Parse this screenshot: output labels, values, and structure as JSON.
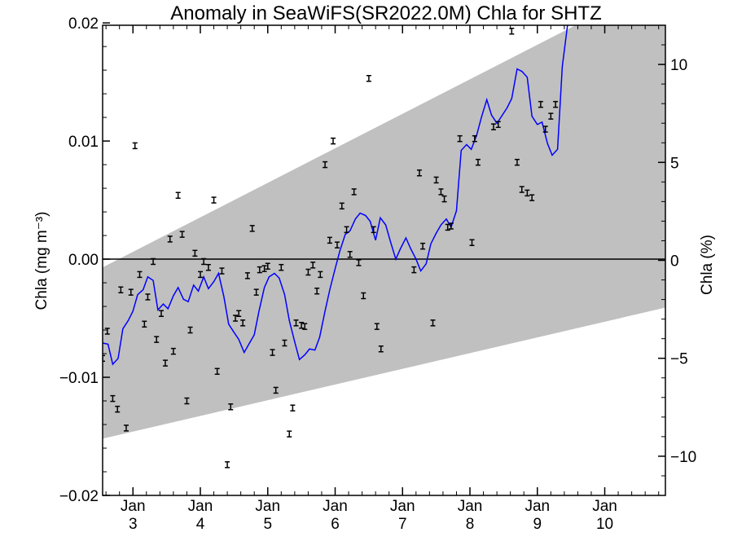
{
  "chart_data": {
    "type": "line",
    "title": "Anomaly in SeaWiFS(SR2022.0M) Chla for SHTZ",
    "ylabel_left": "Chla (mg m⁻³)",
    "ylabel_right": "Chla (%)",
    "x_tick_labels": [
      {
        "top": "Jan",
        "bottom": "3",
        "x": 3
      },
      {
        "top": "Jan",
        "bottom": "4",
        "x": 4
      },
      {
        "top": "Jan",
        "bottom": "5",
        "x": 5
      },
      {
        "top": "Jan",
        "bottom": "6",
        "x": 6
      },
      {
        "top": "Jan",
        "bottom": "7",
        "x": 7
      },
      {
        "top": "Jan",
        "bottom": "8",
        "x": 8
      },
      {
        "top": "Jan",
        "bottom": "9",
        "x": 9
      },
      {
        "top": "Jan",
        "bottom": "10",
        "x": 10
      }
    ],
    "xlim": [
      2.55,
      10.9
    ],
    "ylim_left": [
      -0.02,
      0.0198
    ],
    "ylim_right": [
      -12,
      12
    ],
    "y_ticks_left": [
      {
        "value": 0.02,
        "label": "0.02"
      },
      {
        "value": 0.01,
        "label": "0.01"
      },
      {
        "value": 0.0,
        "label": "0.00"
      },
      {
        "value": -0.01,
        "label": "−0.01"
      },
      {
        "value": -0.02,
        "label": "−0.02"
      }
    ],
    "y_ticks_right": [
      {
        "value": 10,
        "label": "10"
      },
      {
        "value": 5,
        "label": "5"
      },
      {
        "value": 0,
        "label": "0"
      },
      {
        "value": -5,
        "label": "−5"
      },
      {
        "value": -10,
        "label": "−10"
      }
    ],
    "colors": {
      "band": "#c0c0c0",
      "line": "#0000ff",
      "points": "#000000",
      "zero_line": "#000000"
    },
    "band": {
      "upper": [
        [
          2.55,
          -0.0007
        ],
        [
          10.9,
          0.0237
        ]
      ],
      "lower": [
        [
          2.55,
          -0.0152
        ],
        [
          10.9,
          -0.0041
        ]
      ]
    },
    "series": [
      {
        "type": "line",
        "points": [
          [
            2.55,
            -0.0071
          ],
          [
            2.63,
            -0.0072
          ],
          [
            2.7,
            -0.0089
          ],
          [
            2.78,
            -0.0084
          ],
          [
            2.85,
            -0.0059
          ],
          [
            2.93,
            -0.0052
          ],
          [
            3.0,
            -0.0044
          ],
          [
            3.07,
            -0.003
          ],
          [
            3.15,
            -0.0026
          ],
          [
            3.22,
            -0.0015
          ],
          [
            3.3,
            -0.0018
          ],
          [
            3.37,
            -0.0043
          ],
          [
            3.45,
            -0.0038
          ],
          [
            3.52,
            -0.0042
          ],
          [
            3.6,
            -0.0031
          ],
          [
            3.67,
            -0.0024
          ],
          [
            3.75,
            -0.0034
          ],
          [
            3.82,
            -0.0036
          ],
          [
            3.9,
            -0.0022
          ],
          [
            3.97,
            -0.0027
          ],
          [
            4.05,
            -0.0015
          ],
          [
            4.12,
            -0.0025
          ],
          [
            4.2,
            -0.0019
          ],
          [
            4.27,
            -0.0012
          ],
          [
            4.35,
            -0.0032
          ],
          [
            4.42,
            -0.0055
          ],
          [
            4.5,
            -0.0062
          ],
          [
            4.57,
            -0.0068
          ],
          [
            4.65,
            -0.0079
          ],
          [
            4.72,
            -0.0072
          ],
          [
            4.8,
            -0.0064
          ],
          [
            4.87,
            -0.0044
          ],
          [
            4.95,
            -0.0024
          ],
          [
            5.02,
            -0.0015
          ],
          [
            5.1,
            -0.0012
          ],
          [
            5.17,
            -0.0016
          ],
          [
            5.25,
            -0.003
          ],
          [
            5.32,
            -0.0052
          ],
          [
            5.4,
            -0.007
          ],
          [
            5.47,
            -0.0085
          ],
          [
            5.55,
            -0.0081
          ],
          [
            5.62,
            -0.0076
          ],
          [
            5.7,
            -0.0077
          ],
          [
            5.77,
            -0.0066
          ],
          [
            5.85,
            -0.0044
          ],
          [
            5.92,
            -0.0026
          ],
          [
            6.0,
            -0.0008
          ],
          [
            6.07,
            0.0007
          ],
          [
            6.15,
            0.0021
          ],
          [
            6.22,
            0.0024
          ],
          [
            6.3,
            0.0034
          ],
          [
            6.37,
            0.0039
          ],
          [
            6.45,
            0.0037
          ],
          [
            6.52,
            0.0032
          ],
          [
            6.6,
            0.0016
          ],
          [
            6.67,
            0.0035
          ],
          [
            6.75,
            0.0029
          ],
          [
            6.82,
            0.0015
          ],
          [
            6.9,
            0.0
          ],
          [
            6.97,
            0.0009
          ],
          [
            7.05,
            0.0018
          ],
          [
            7.12,
            0.0009
          ],
          [
            7.2,
            0.0
          ],
          [
            7.27,
            -0.001
          ],
          [
            7.35,
            -0.0004
          ],
          [
            7.42,
            0.0013
          ],
          [
            7.5,
            0.0022
          ],
          [
            7.57,
            0.0029
          ],
          [
            7.65,
            0.0034
          ],
          [
            7.72,
            0.0027
          ],
          [
            7.8,
            0.0041
          ],
          [
            7.87,
            0.0092
          ],
          [
            7.95,
            0.0097
          ],
          [
            8.02,
            0.0093
          ],
          [
            8.1,
            0.0105
          ],
          [
            8.17,
            0.012
          ],
          [
            8.25,
            0.0135
          ],
          [
            8.32,
            0.0122
          ],
          [
            8.4,
            0.0115
          ],
          [
            8.47,
            0.0121
          ],
          [
            8.55,
            0.0128
          ],
          [
            8.62,
            0.0136
          ],
          [
            8.7,
            0.0161
          ],
          [
            8.77,
            0.0159
          ],
          [
            8.85,
            0.0154
          ],
          [
            8.92,
            0.0121
          ],
          [
            9.0,
            0.0114
          ],
          [
            9.07,
            0.0116
          ],
          [
            9.15,
            0.0098
          ],
          [
            9.22,
            0.0088
          ],
          [
            9.3,
            0.0093
          ],
          [
            9.37,
            0.0163
          ],
          [
            9.45,
            0.0199
          ]
        ]
      },
      {
        "type": "scatter_errorbar",
        "points": [
          [
            2.55,
            -0.0084
          ],
          [
            2.62,
            -0.0061
          ],
          [
            2.7,
            -0.0118
          ],
          [
            2.77,
            -0.0127
          ],
          [
            2.82,
            -0.0026
          ],
          [
            2.9,
            -0.0143
          ],
          [
            2.97,
            -0.0028
          ],
          [
            3.03,
            0.0096
          ],
          [
            3.1,
            -0.0013
          ],
          [
            3.17,
            -0.0055
          ],
          [
            3.22,
            -0.0032
          ],
          [
            3.3,
            -0.0002
          ],
          [
            3.35,
            -0.0068
          ],
          [
            3.42,
            -0.0046
          ],
          [
            3.48,
            -0.0088
          ],
          [
            3.55,
            0.0017
          ],
          [
            3.6,
            -0.0078
          ],
          [
            3.67,
            0.0054
          ],
          [
            3.73,
            0.0021
          ],
          [
            3.8,
            -0.012
          ],
          [
            3.85,
            -0.006
          ],
          [
            3.92,
            0.0005
          ],
          [
            4.0,
            -0.0013
          ],
          [
            4.05,
            -0.0002
          ],
          [
            4.12,
            -0.0007
          ],
          [
            4.2,
            0.005
          ],
          [
            4.25,
            -0.0095
          ],
          [
            4.32,
            -0.001
          ],
          [
            4.4,
            -0.0174
          ],
          [
            4.45,
            -0.0125
          ],
          [
            4.52,
            -0.005
          ],
          [
            4.57,
            -0.0046
          ],
          [
            4.63,
            -0.0054
          ],
          [
            4.7,
            -0.0014
          ],
          [
            4.77,
            0.0026
          ],
          [
            4.83,
            -0.0028
          ],
          [
            4.88,
            -0.0009
          ],
          [
            4.95,
            -0.0008
          ],
          [
            5.0,
            -0.0006
          ],
          [
            5.07,
            -0.0079
          ],
          [
            5.12,
            -0.0111
          ],
          [
            5.2,
            -0.0007
          ],
          [
            5.25,
            -0.0071
          ],
          [
            5.32,
            -0.0148
          ],
          [
            5.37,
            -0.0126
          ],
          [
            5.42,
            -0.0054
          ],
          [
            5.5,
            -0.0056
          ],
          [
            5.55,
            -0.0057
          ],
          [
            5.6,
            -0.0011
          ],
          [
            5.67,
            -0.0005
          ],
          [
            5.73,
            -0.0027
          ],
          [
            5.78,
            -0.0013
          ],
          [
            5.85,
            0.008
          ],
          [
            5.92,
            0.0016
          ],
          [
            5.97,
            0.01
          ],
          [
            6.03,
            0.0012
          ],
          [
            6.1,
            0.0045
          ],
          [
            6.17,
            0.0025
          ],
          [
            6.22,
            0.0004
          ],
          [
            6.28,
            0.0057
          ],
          [
            6.35,
            -0.0003
          ],
          [
            6.42,
            -0.0031
          ],
          [
            6.5,
            0.0153
          ],
          [
            6.57,
            0.0025
          ],
          [
            6.62,
            -0.0057
          ],
          [
            6.68,
            -0.0076
          ],
          [
            7.17,
            -0.0009
          ],
          [
            7.25,
            0.0073
          ],
          [
            7.3,
            0.0011
          ],
          [
            7.45,
            -0.0054
          ],
          [
            7.5,
            0.0067
          ],
          [
            7.57,
            0.0057
          ],
          [
            7.62,
            0.0051
          ],
          [
            7.67,
            0.0027
          ],
          [
            7.72,
            0.0028
          ],
          [
            7.85,
            0.0102
          ],
          [
            8.03,
            0.0014
          ],
          [
            8.07,
            0.0102
          ],
          [
            8.12,
            0.0082
          ],
          [
            8.35,
            0.0112
          ],
          [
            8.42,
            0.0114
          ],
          [
            8.62,
            0.0193
          ],
          [
            8.7,
            0.0082
          ],
          [
            8.77,
            0.0059
          ],
          [
            8.85,
            0.0056
          ],
          [
            8.92,
            0.0052
          ],
          [
            9.05,
            0.0131
          ],
          [
            9.12,
            0.011
          ],
          [
            9.2,
            0.0121
          ],
          [
            9.27,
            0.0131
          ]
        ]
      }
    ]
  }
}
